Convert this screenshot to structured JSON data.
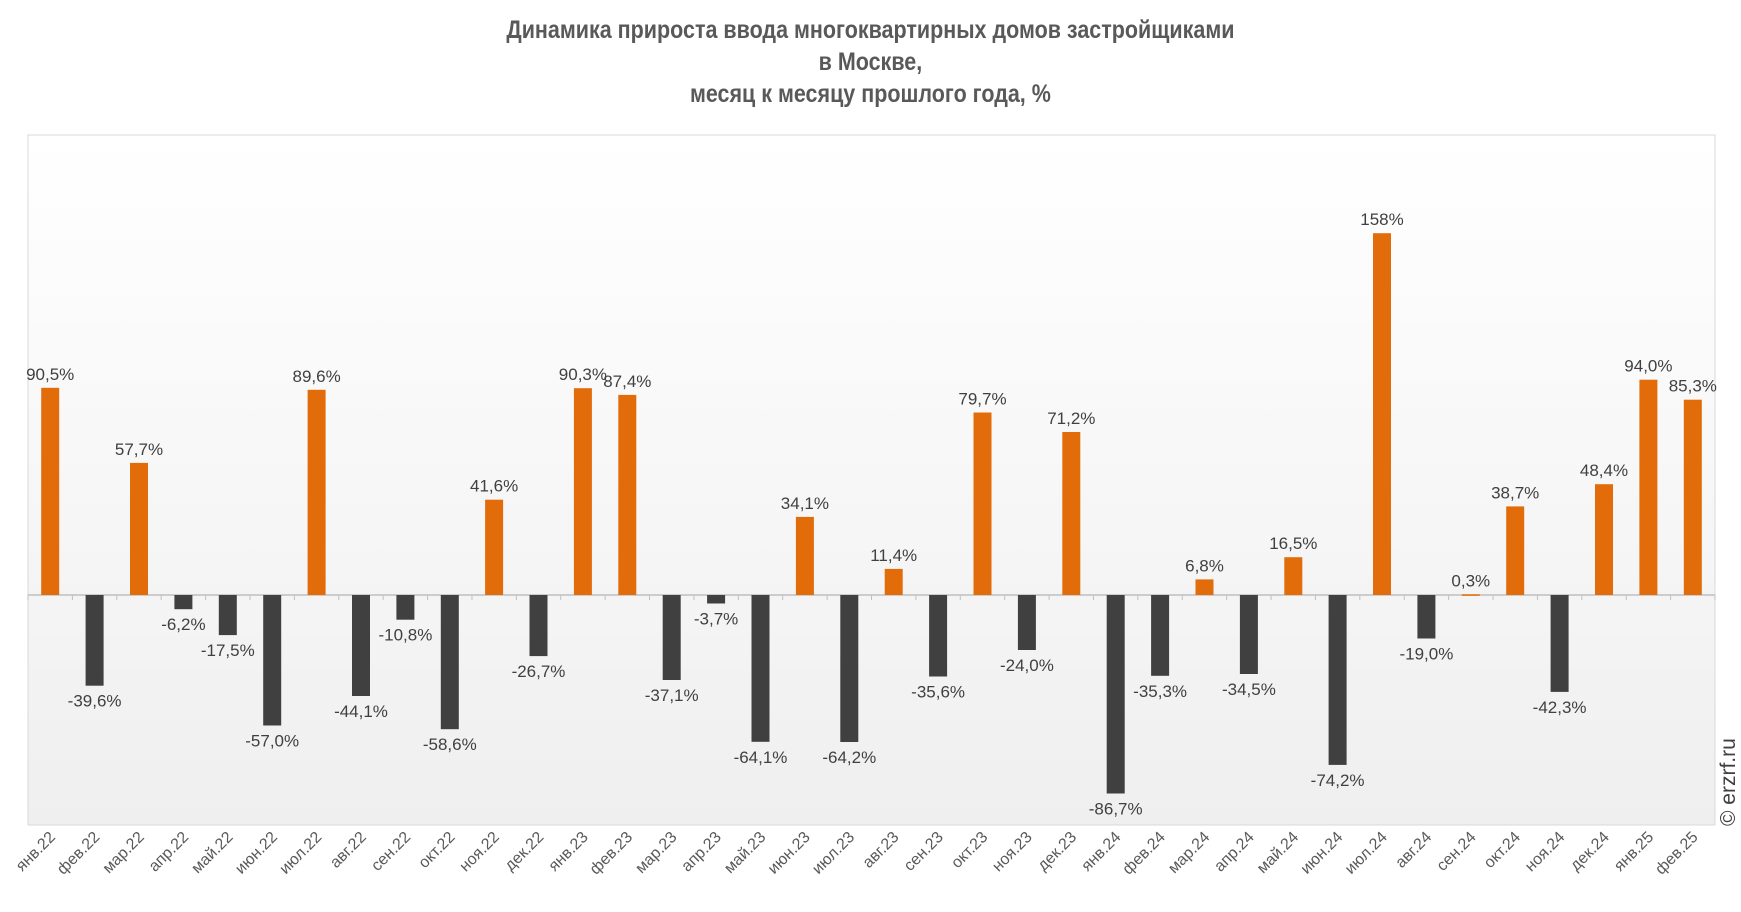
{
  "chart_data": {
    "type": "bar",
    "title": [
      "Динамика прироста ввода многоквартирных домов застройщиками",
      "в Москве,",
      "месяц к месяцу прошлого года, %"
    ],
    "xlabel": "",
    "ylabel": "",
    "ylim": [
      -100,
      170
    ],
    "grid": false,
    "legend": "none",
    "categories": [
      "янв.22",
      "фев.22",
      "мар.22",
      "апр.22",
      "май.22",
      "июн.22",
      "июл.22",
      "авг.22",
      "сен.22",
      "окт.22",
      "ноя.22",
      "дек.22",
      "янв.23",
      "фев.23",
      "мар.23",
      "апр.23",
      "май.23",
      "июн.23",
      "июл.23",
      "авг.23",
      "сен.23",
      "окт.23",
      "ноя.23",
      "дек.23",
      "янв.24",
      "фев.24",
      "мар.24",
      "апр.24",
      "май.24",
      "июн.24",
      "июл.24",
      "авг.24",
      "сен.24",
      "окт.24",
      "ноя.24",
      "дек.24",
      "янв.25",
      "фев.25"
    ],
    "values": [
      90.5,
      -39.6,
      57.7,
      -6.2,
      -17.5,
      -57.0,
      89.6,
      -44.1,
      -10.8,
      -58.6,
      41.6,
      -26.7,
      90.3,
      87.4,
      -37.1,
      -3.7,
      -64.1,
      34.1,
      -64.2,
      11.4,
      -35.6,
      79.7,
      -24.0,
      71.2,
      -86.7,
      -35.3,
      6.8,
      -34.5,
      16.5,
      -74.2,
      158,
      -19.0,
      0.3,
      38.7,
      -42.3,
      48.4,
      94.0,
      85.3
    ],
    "labels": [
      "90,5%",
      "-39,6%",
      "57,7%",
      "-6,2%",
      "-17,5%",
      "-57,0%",
      "89,6%",
      "-44,1%",
      "-10,8%",
      "-58,6%",
      "41,6%",
      "-26,7%",
      "90,3%",
      "87,4%",
      "-37,1%",
      "-3,7%",
      "-64,1%",
      "34,1%",
      "-64,2%",
      "11,4%",
      "-35,6%",
      "79,7%",
      "-24,0%",
      "71,2%",
      "-86,7%",
      "-35,3%",
      "6,8%",
      "-34,5%",
      "16,5%",
      "-74,2%",
      "158%",
      "-19,0%",
      "0,3%",
      "38,7%",
      "-42,3%",
      "48,4%",
      "94,0%",
      "85,3%"
    ],
    "colors": {
      "positive": "#E36C0A",
      "negative": "#404040"
    }
  },
  "watermark": "© erzrf.ru"
}
